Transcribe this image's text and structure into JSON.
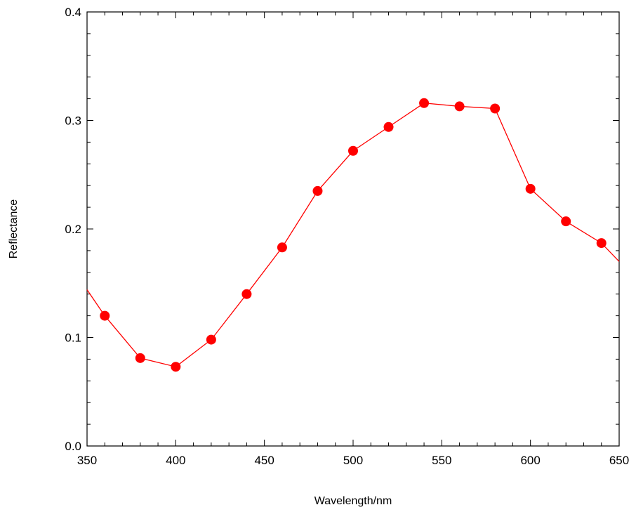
{
  "chart_data": {
    "type": "line",
    "title": "",
    "xlabel": "Wavelength/nm",
    "ylabel": "Reflectance",
    "xlim": [
      350,
      650
    ],
    "ylim": [
      0.0,
      0.4
    ],
    "x_ticks": [
      "350",
      "400",
      "450",
      "500",
      "550",
      "600",
      "650"
    ],
    "y_ticks": [
      "0.0",
      "0.1",
      "0.2",
      "0.3",
      "0.4"
    ],
    "grid": false,
    "legend": "none",
    "line_color": "#ff0000",
    "marker_color": "#ff0000",
    "marker": "circle",
    "series": [
      {
        "x": [
          350,
          360,
          380,
          400,
          420,
          440,
          460,
          480,
          500,
          520,
          540,
          560,
          580,
          600,
          620,
          640,
          650
        ],
        "y": [
          0.144,
          0.12,
          0.081,
          0.073,
          0.098,
          0.14,
          0.183,
          0.235,
          0.272,
          0.294,
          0.316,
          0.313,
          0.311,
          0.237,
          0.207,
          0.187,
          0.17
        ],
        "markers": [
          false,
          true,
          true,
          true,
          true,
          true,
          true,
          true,
          true,
          true,
          true,
          true,
          true,
          true,
          true,
          true,
          false
        ]
      }
    ]
  }
}
